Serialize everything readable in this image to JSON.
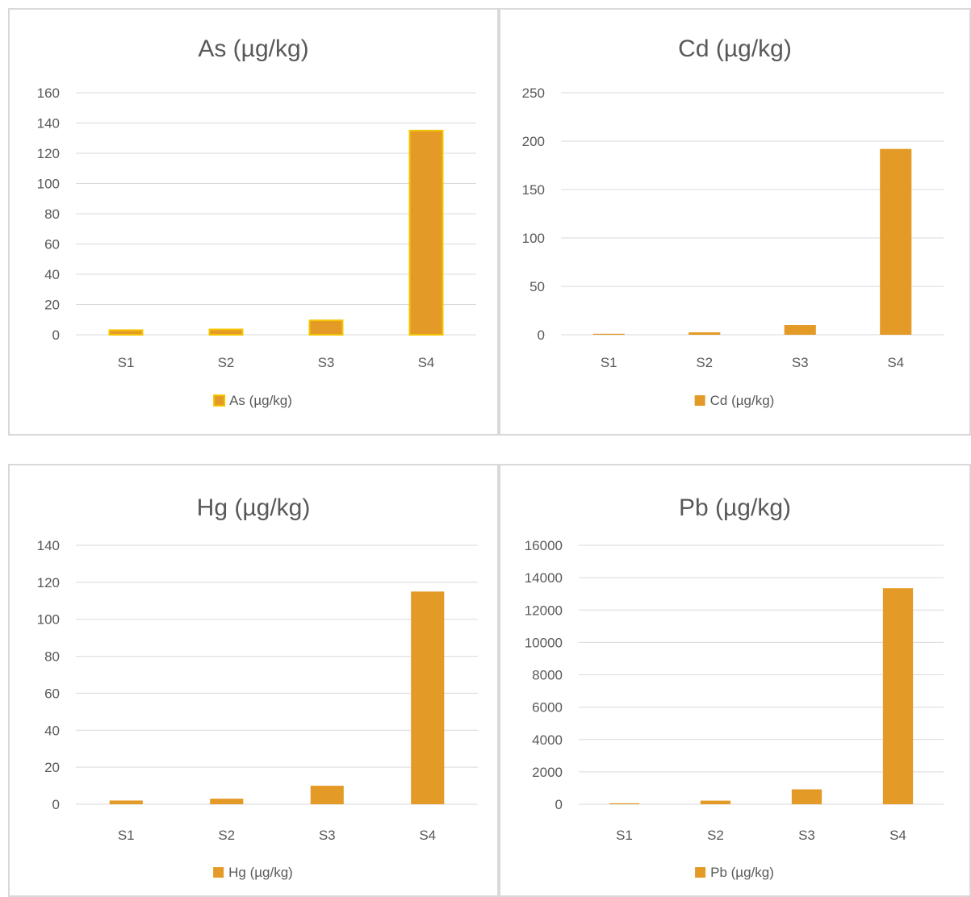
{
  "chart_data": [
    {
      "type": "bar",
      "title": "As (µg/kg)",
      "categories": [
        "S1",
        "S2",
        "S3",
        "S4"
      ],
      "series": [
        {
          "name": "As (µg/kg)",
          "values": [
            3,
            3.5,
            9.5,
            135
          ]
        }
      ],
      "ylim": [
        0,
        160
      ],
      "yticks": [
        0,
        20,
        40,
        60,
        80,
        100,
        120,
        140,
        160
      ],
      "legend": "bottom",
      "grid": true,
      "bar_color": "#E39A26",
      "bar_outline": "#F5C400"
    },
    {
      "type": "bar",
      "title": "Cd (µg/kg)",
      "categories": [
        "S1",
        "S2",
        "S3",
        "S4"
      ],
      "series": [
        {
          "name": "Cd (µg/kg)",
          "values": [
            1,
            2.5,
            10,
            192
          ]
        }
      ],
      "ylim": [
        0,
        250
      ],
      "yticks": [
        0,
        50,
        100,
        150,
        200,
        250
      ],
      "legend": "bottom",
      "grid": true,
      "bar_color": "#E39A26"
    },
    {
      "type": "bar",
      "title": "Hg (µg/kg)",
      "categories": [
        "S1",
        "S2",
        "S3",
        "S4"
      ],
      "series": [
        {
          "name": "Hg (µg/kg)",
          "values": [
            2,
            3,
            10,
            115
          ]
        }
      ],
      "ylim": [
        0,
        140
      ],
      "yticks": [
        0,
        20,
        40,
        60,
        80,
        100,
        120,
        140
      ],
      "legend": "bottom",
      "grid": true,
      "bar_color": "#E39A26"
    },
    {
      "type": "bar",
      "title": "Pb (µg/kg)",
      "categories": [
        "S1",
        "S2",
        "S3",
        "S4"
      ],
      "series": [
        {
          "name": "Pb (µg/kg)",
          "values": [
            60,
            220,
            920,
            13350
          ]
        }
      ],
      "ylim": [
        0,
        16000
      ],
      "yticks": [
        0,
        2000,
        4000,
        6000,
        8000,
        10000,
        12000,
        14000,
        16000
      ],
      "legend": "bottom",
      "grid": true,
      "bar_color": "#E39A26"
    }
  ]
}
